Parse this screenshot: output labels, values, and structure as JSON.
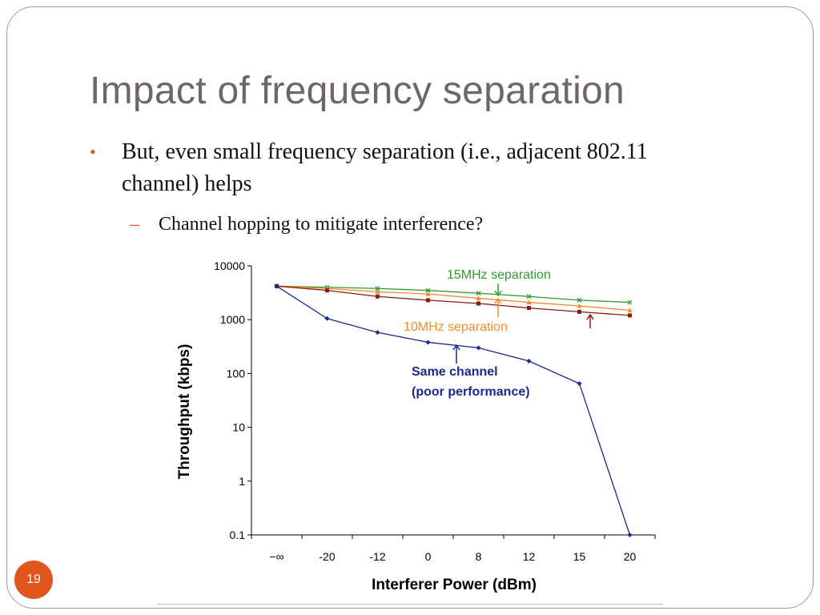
{
  "slide": {
    "title": "Impact of frequency separation",
    "bullet": "But, even small frequency separation (i.e., adjacent 802.11 channel) helps",
    "sub_bullet": "Channel hopping to mitigate interference?",
    "page_number": "19",
    "bullet_marker": "•",
    "dash_marker": "–",
    "accent_color": "#e0551b"
  },
  "chart_data": {
    "type": "line",
    "xlabel": "Interferer Power (dBm)",
    "ylabel": "Throughput (kbps)",
    "y_scale": "log",
    "ylim": [
      0.1,
      10000
    ],
    "y_ticks": [
      "10000",
      "1000",
      "100",
      "10",
      "1",
      "0.1"
    ],
    "categories": [
      "−∞",
      "-20",
      "-12",
      "0",
      "8",
      "12",
      "15",
      "20"
    ],
    "grid": false,
    "series": [
      {
        "label": "15MHz separation",
        "color": "#2e9a2e",
        "marker": "x",
        "values": [
          4200,
          4000,
          3800,
          3500,
          3100,
          2700,
          2300,
          2100
        ]
      },
      {
        "label": "10MHz separation",
        "color": "#f28a2a",
        "marker": "triangle",
        "values": [
          4200,
          3800,
          3300,
          3000,
          2500,
          2100,
          1800,
          1500
        ]
      },
      {
        "label": "",
        "color": "#8b1a10",
        "marker": "square",
        "values": [
          4200,
          3500,
          2700,
          2300,
          2000,
          1650,
          1400,
          1200
        ]
      },
      {
        "label": "Same channel\n(poor performance)",
        "color": "#1a2a8a",
        "marker": "diamond",
        "values": [
          4200,
          1050,
          580,
          380,
          300,
          170,
          65,
          0.1
        ]
      }
    ],
    "annotations": {
      "green": "15MHz separation",
      "orange": "10MHz separation",
      "blue_line1": "Same channel",
      "blue_line2": "(poor performance)"
    }
  }
}
